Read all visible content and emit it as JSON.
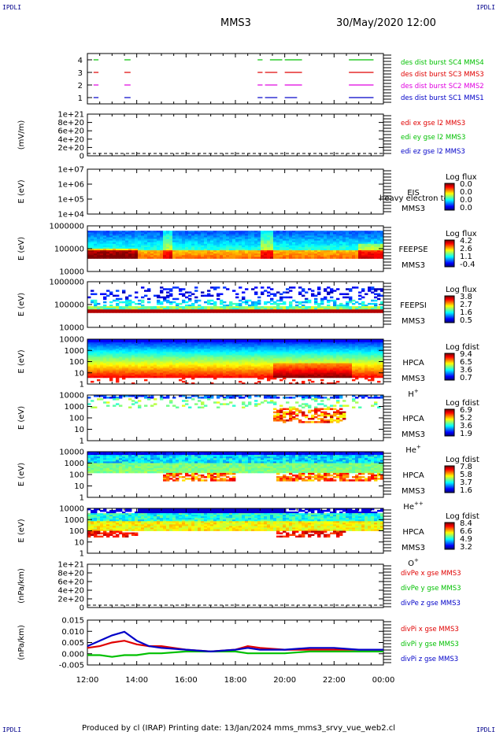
{
  "corner_label": "IPDLI",
  "header": {
    "spacecraft": "MMS3",
    "datetime": "30/May/2020 12:00"
  },
  "footer": "Produced by cl (IRAP)   Printing date: 13/Jan/2024   mms_mms3_srvy_vue_web2.cl",
  "colors": {
    "red": "#e00000",
    "green": "#00c000",
    "blue": "#0000c8",
    "magenta": "#e000e0",
    "ink": "#000000"
  },
  "chart_data": [
    {
      "type": "line",
      "panel": "burst",
      "yticks": [
        "4",
        "3",
        "2",
        "1"
      ],
      "series": [
        {
          "name": "des dist burst SC1 MMS1",
          "color": "#0000c8",
          "y": 1,
          "intervals": [
            [
              12.25,
              12.45
            ],
            [
              13.5,
              13.75
            ],
            [
              18.9,
              19.1
            ],
            [
              19.2,
              19.7
            ],
            [
              20.0,
              20.5
            ],
            [
              22.6,
              23.6
            ]
          ]
        },
        {
          "name": "des dist burst SC2 MMS2",
          "color": "#e000e0",
          "y": 2,
          "intervals": [
            [
              12.25,
              12.45
            ],
            [
              13.5,
              13.75
            ],
            [
              18.9,
              19.1
            ],
            [
              19.2,
              19.7
            ],
            [
              20.0,
              20.7
            ],
            [
              22.6,
              23.6
            ]
          ]
        },
        {
          "name": "des dist burst SC3 MMS3",
          "color": "#e00000",
          "y": 3,
          "intervals": [
            [
              12.25,
              12.45
            ],
            [
              13.5,
              13.75
            ],
            [
              18.9,
              19.1
            ],
            [
              19.2,
              19.7
            ],
            [
              20.0,
              20.7
            ],
            [
              22.6,
              23.6
            ]
          ]
        },
        {
          "name": "des dist burst SC4 MMS4",
          "color": "#00c000",
          "y": 4,
          "intervals": [
            [
              12.25,
              12.45
            ],
            [
              13.5,
              13.75
            ],
            [
              18.9,
              19.1
            ],
            [
              19.4,
              19.9
            ],
            [
              20.0,
              20.7
            ],
            [
              22.6,
              23.6
            ]
          ]
        }
      ]
    },
    {
      "type": "line",
      "panel": "edi",
      "ylabel": "(mV/m)",
      "yticks": [
        "1e+21",
        "8e+20",
        "6e+20",
        "4e+20",
        "2e+20",
        "0"
      ],
      "series": [
        {
          "name": "edi ex gse l2 MMS3",
          "color": "#e00000"
        },
        {
          "name": "edi ey gse l2 MMS3",
          "color": "#00c000"
        },
        {
          "name": "edi ez gse l2 MMS3",
          "color": "#0000c8"
        }
      ]
    },
    {
      "type": "heatmap",
      "panel": "eis",
      "ylabel": "E (eV)",
      "yticks": [
        "1e+07",
        "1e+06",
        "1e+05",
        "1e+04"
      ],
      "right_labels": [
        "EIS",
        "MMS3"
      ],
      "overlay_text": "heavy electron to",
      "colorbar": {
        "title": "Log flux",
        "ticks": [
          "0.0",
          "0.0",
          "0.0",
          "0.0"
        ]
      }
    },
    {
      "type": "heatmap",
      "panel": "feepse",
      "ylabel": "E (eV)",
      "yticks": [
        "1000000",
        "100000",
        "10000"
      ],
      "right_labels": [
        "FEEPSE",
        "MMS3"
      ],
      "colorbar": {
        "title": "Log flux",
        "ticks": [
          "4.2",
          "2.6",
          "1.1",
          "-0.4"
        ]
      }
    },
    {
      "type": "heatmap",
      "panel": "feepsi",
      "ylabel": "E (eV)",
      "yticks": [
        "1000000",
        "100000",
        "10000"
      ],
      "right_labels": [
        "FEEPSI",
        "MMS3"
      ],
      "colorbar": {
        "title": "Log flux",
        "ticks": [
          "3.8",
          "2.7",
          "1.6",
          "0.5"
        ]
      }
    },
    {
      "type": "heatmap",
      "panel": "hpca_h",
      "ylabel": "E (eV)",
      "yticks": [
        "10000",
        "1000",
        "100",
        "10",
        "1"
      ],
      "right_labels": [
        "HPCA",
        "MMS3"
      ],
      "species": {
        "base": "H",
        "sup": "+"
      },
      "colorbar": {
        "title": "Log fdist",
        "ticks": [
          "9.4",
          "6.5",
          "3.6",
          "0.7"
        ]
      }
    },
    {
      "type": "heatmap",
      "panel": "hpca_he",
      "ylabel": "E (eV)",
      "yticks": [
        "10000",
        "1000",
        "100",
        "10",
        "1"
      ],
      "right_labels": [
        "HPCA",
        "MMS3"
      ],
      "species": {
        "base": "He",
        "sup": "+"
      },
      "colorbar": {
        "title": "Log fdist",
        "ticks": [
          "6.9",
          "5.2",
          "3.6",
          "1.9"
        ]
      }
    },
    {
      "type": "heatmap",
      "panel": "hpca_hepp",
      "ylabel": "E (eV)",
      "yticks": [
        "10000",
        "1000",
        "100",
        "10",
        "1"
      ],
      "right_labels": [
        "HPCA",
        "MMS3"
      ],
      "species": {
        "base": "He",
        "sup": "++"
      },
      "colorbar": {
        "title": "Log fdist",
        "ticks": [
          "7.8",
          "5.8",
          "3.7",
          "1.6"
        ]
      }
    },
    {
      "type": "heatmap",
      "panel": "hpca_o",
      "ylabel": "E (eV)",
      "yticks": [
        "10000",
        "1000",
        "100",
        "10",
        "1"
      ],
      "right_labels": [
        "HPCA",
        "MMS3"
      ],
      "species": {
        "base": "O",
        "sup": "+"
      },
      "colorbar": {
        "title": "Log fdist",
        "ticks": [
          "8.4",
          "6.6",
          "4.9",
          "3.2"
        ]
      }
    },
    {
      "type": "line",
      "panel": "divpe",
      "ylabel": "(nPa/km)",
      "yticks": [
        "1e+21",
        "8e+20",
        "6e+20",
        "4e+20",
        "2e+20",
        "0"
      ],
      "series": [
        {
          "name": "divPe x gse MMS3",
          "color": "#e00000"
        },
        {
          "name": "divPe y gse MMS3",
          "color": "#00c000"
        },
        {
          "name": "divPe z gse MMS3",
          "color": "#0000c8"
        }
      ]
    },
    {
      "type": "line",
      "panel": "divpi",
      "ylabel": "(nPa/km)",
      "yticks": [
        "0.015",
        "0.010",
        "0.005",
        "0.000",
        "-0.005"
      ],
      "ylim": [
        -0.0075,
        0.0175
      ],
      "x": [
        12.0,
        12.5,
        13.0,
        13.5,
        14.0,
        14.5,
        15.0,
        16.0,
        17.0,
        18.0,
        18.5,
        19.0,
        20.0,
        21.0,
        22.0,
        23.0,
        24.0
      ],
      "series": [
        {
          "name": "divPi x gse MMS3",
          "color": "#e00000",
          "values": [
            0.002,
            0.003,
            0.005,
            0.006,
            0.004,
            0.003,
            0.003,
            0.001,
            0.0,
            0.001,
            0.003,
            0.002,
            0.001,
            0.001,
            0.001,
            0.001,
            0.001
          ]
        },
        {
          "name": "divPi y gse MMS3",
          "color": "#00c000",
          "values": [
            -0.002,
            -0.002,
            -0.003,
            -0.002,
            -0.002,
            -0.001,
            -0.001,
            0.0,
            0.0,
            0.0,
            -0.001,
            -0.001,
            -0.001,
            0.0,
            0.0,
            0.0,
            0.0
          ]
        },
        {
          "name": "divPi z gse MMS3",
          "color": "#0000c8",
          "values": [
            0.003,
            0.006,
            0.009,
            0.011,
            0.006,
            0.003,
            0.002,
            0.001,
            0.0,
            0.001,
            0.002,
            0.001,
            0.001,
            0.002,
            0.002,
            0.001,
            0.001
          ]
        }
      ]
    }
  ],
  "xaxis": {
    "ticks": [
      "12:00",
      "14:00",
      "16:00",
      "18:00",
      "20:00",
      "22:00",
      "00:00"
    ],
    "x": [
      12,
      14,
      16,
      18,
      20,
      22,
      24
    ]
  }
}
